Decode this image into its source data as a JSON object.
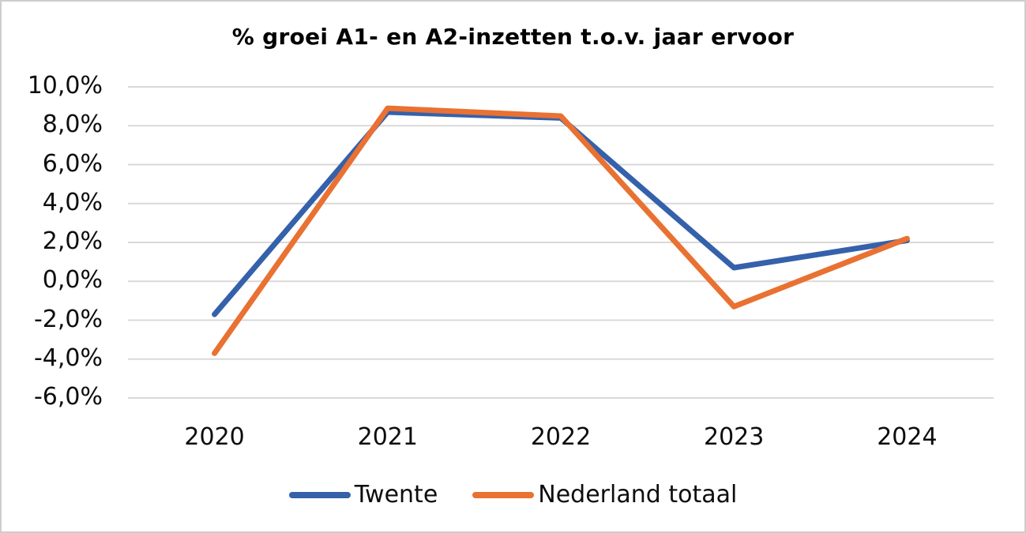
{
  "window": {
    "background": "#ffffff",
    "frame_border_color": "#cdcdcd"
  },
  "chart_data": {
    "type": "line",
    "title": "% groei A1- en A2-inzetten t.o.v. jaar ervoor",
    "categories": [
      "2020",
      "2021",
      "2022",
      "2023",
      "2024"
    ],
    "series": [
      {
        "name": "Twente",
        "color": "#3561AB",
        "values": [
          -1.7,
          8.7,
          8.4,
          0.7,
          2.1
        ]
      },
      {
        "name": "Nederland totaal",
        "color": "#E97132",
        "values": [
          -3.7,
          8.9,
          8.5,
          -1.3,
          2.2
        ]
      }
    ],
    "y_axis": {
      "min": -6,
      "max": 10,
      "step": 2,
      "tick_labels": [
        "10,0%",
        "8,0%",
        "6,0%",
        "4,0%",
        "2,0%",
        "0,0%",
        "-2,0%",
        "-4,0%",
        "-6,0%"
      ]
    },
    "x_axis": {
      "tick_labels": [
        "2020",
        "2021",
        "2022",
        "2023",
        "2024"
      ]
    },
    "grid": true,
    "gridline_color": "#D9D9D9",
    "line_width": 7,
    "legend_position": "bottom",
    "text_color": "#0d0d0d"
  }
}
